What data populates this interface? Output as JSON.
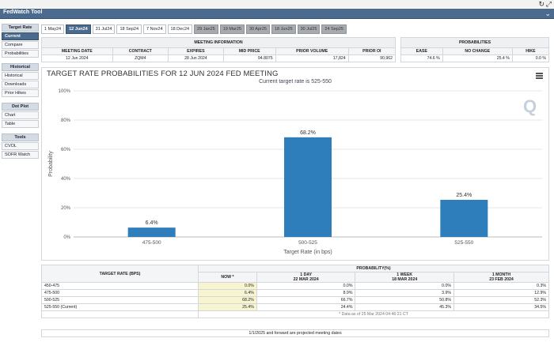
{
  "app": {
    "title": "FedWatch Tool"
  },
  "icons": {
    "refresh": "refresh-icon",
    "collapse": "chevron-icon",
    "menu": "hamburger-menu-icon"
  },
  "sidebar": [
    {
      "header": "Target Rate",
      "items": [
        "Current",
        "Compare",
        "Probabilities"
      ]
    },
    {
      "header": "Historical",
      "items": [
        "Historical",
        "Downloads",
        "Prior Hikes"
      ]
    },
    {
      "header": "Dot Plot",
      "items": [
        "Chart",
        "Table"
      ]
    },
    {
      "header": "Tools",
      "items": [
        "CVOL",
        "SOFR Watch"
      ]
    }
  ],
  "tabs": [
    "1 May24",
    "12 Jun24",
    "31 Jul24",
    "18 Sep24",
    "7 Nov24",
    "18 Dec24",
    "29 Jan25",
    "19 Mar25",
    "30 Apr25",
    "18 Jun25",
    "30 Jul25",
    "24 Sep25"
  ],
  "meeting_info": {
    "title": "MEETING INFORMATION",
    "headers": [
      "MEETING DATE",
      "CONTRACT",
      "EXPIRES",
      "MID PRICE",
      "PRIOR VOLUME",
      "PRIOR OI"
    ],
    "row": [
      "12 Jun 2024",
      "ZQM4",
      "28 Jun 2024",
      "94.8075",
      "17,824",
      "90,962"
    ]
  },
  "probabilities": {
    "title": "PROBABILITIES",
    "headers": [
      "EASE",
      "NO CHANGE",
      "HIKE"
    ],
    "row": [
      "74.6 %",
      "25.4 %",
      "0.0 %"
    ]
  },
  "chart_data": {
    "type": "bar",
    "title": "TARGET RATE PROBABILITIES FOR 12 JUN 2024 FED MEETING",
    "subtitle": "Current target rate is 525-550",
    "categories": [
      "475-500",
      "500-525",
      "525-550"
    ],
    "values": [
      6.4,
      68.2,
      25.4
    ],
    "value_labels": [
      "6.4%",
      "68.2%",
      "25.4%"
    ],
    "xlabel": "Target Rate (in bps)",
    "ylabel": "Probability",
    "ylim": [
      0,
      100
    ],
    "yticks": [
      "0%",
      "20%",
      "40%",
      "60%",
      "80%",
      "100%"
    ],
    "bar_color": "#2f7ebc",
    "grid": true
  },
  "prob_table": {
    "col1_header": "TARGET RATE (BPS)",
    "group_header": "PROBABILITY(%)",
    "col_headers": [
      {
        "l1": "NOW *",
        "l2": ""
      },
      {
        "l1": "1 DAY",
        "l2": "22 MAR 2024"
      },
      {
        "l1": "1 WEEK",
        "l2": "18 MAR 2024"
      },
      {
        "l1": "1 MONTH",
        "l2": "23 FEB 2024"
      }
    ],
    "rows": [
      [
        "450-475",
        "0.0%",
        "0.0%",
        "0.0%",
        "0.3%"
      ],
      [
        "475-500",
        "6.4%",
        "8.9%",
        "3.9%",
        "12.9%"
      ],
      [
        "500-525",
        "68.2%",
        "66.7%",
        "50.8%",
        "52.3%"
      ],
      [
        "525-550 (Current)",
        "25.4%",
        "24.4%",
        "45.3%",
        "34.5%"
      ]
    ],
    "note": "* Data as of 25 Mar 2024 04:46:21 CT"
  },
  "footer": "1/1/2025 and forward are projected meeting dates"
}
